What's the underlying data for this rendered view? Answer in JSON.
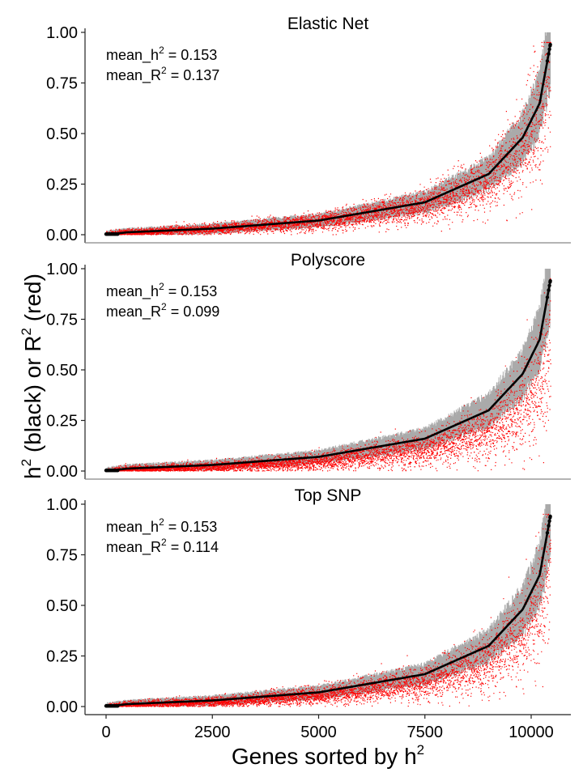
{
  "figure": {
    "ylabel": {
      "part1": "h",
      "sup1": "2",
      "part2": " (black) or  R",
      "sup2": "2",
      "part3": " (red)"
    },
    "xlabel": {
      "base": "Genes sorted by h",
      "sup": "2"
    }
  },
  "chart_data": [
    {
      "type": "scatter",
      "title": "Elastic Net",
      "annotation": {
        "h2_label": "mean_h",
        "h2_value": "0.153",
        "r2_label": "mean_R",
        "r2_value": "0.137"
      },
      "xlim": [
        0,
        10450
      ],
      "ylim": [
        0,
        1
      ],
      "xticks": [
        0,
        2500,
        5000,
        7500,
        10000
      ],
      "yticks": [
        0.0,
        0.25,
        0.5,
        0.75,
        1.0
      ],
      "ytick_labels": [
        "0.00",
        "0.25",
        "0.50",
        "0.75",
        "1.00"
      ],
      "series": [
        {
          "role": "h2",
          "color": "#000000"
        },
        {
          "role": "h2_interval",
          "color": "#aaaaaa"
        },
        {
          "role": "R2",
          "color": "#ff0000"
        }
      ],
      "n_genes": 10450,
      "h2_curve": [
        [
          0,
          0.0
        ],
        [
          500,
          0.012
        ],
        [
          2500,
          0.03
        ],
        [
          5000,
          0.07
        ],
        [
          7500,
          0.16
        ],
        [
          9000,
          0.3
        ],
        [
          9800,
          0.48
        ],
        [
          10200,
          0.65
        ],
        [
          10450,
          0.94
        ]
      ]
    },
    {
      "type": "scatter",
      "title": "Polyscore",
      "annotation": {
        "h2_label": "mean_h",
        "h2_value": "0.153",
        "r2_label": "mean_R",
        "r2_value": "0.099"
      },
      "xlim": [
        0,
        10450
      ],
      "ylim": [
        0,
        1
      ],
      "xticks": [
        0,
        2500,
        5000,
        7500,
        10000
      ],
      "yticks": [
        0.0,
        0.25,
        0.5,
        0.75,
        1.0
      ],
      "ytick_labels": [
        "0.00",
        "0.25",
        "0.50",
        "0.75",
        "1.00"
      ],
      "series": [
        {
          "role": "h2",
          "color": "#000000"
        },
        {
          "role": "h2_interval",
          "color": "#aaaaaa"
        },
        {
          "role": "R2",
          "color": "#ff0000"
        }
      ],
      "n_genes": 10450,
      "h2_curve": [
        [
          0,
          0.0
        ],
        [
          500,
          0.012
        ],
        [
          2500,
          0.03
        ],
        [
          5000,
          0.07
        ],
        [
          7500,
          0.16
        ],
        [
          9000,
          0.3
        ],
        [
          9800,
          0.48
        ],
        [
          10200,
          0.65
        ],
        [
          10450,
          0.94
        ]
      ]
    },
    {
      "type": "scatter",
      "title": "Top SNP",
      "annotation": {
        "h2_label": "mean_h",
        "h2_value": "0.153",
        "r2_label": "mean_R",
        "r2_value": "0.114"
      },
      "xlim": [
        0,
        10450
      ],
      "ylim": [
        0,
        1
      ],
      "xticks": [
        0,
        2500,
        5000,
        7500,
        10000
      ],
      "xtick_labels": [
        "0",
        "2500",
        "5000",
        "7500",
        "10000"
      ],
      "yticks": [
        0.0,
        0.25,
        0.5,
        0.75,
        1.0
      ],
      "ytick_labels": [
        "0.00",
        "0.25",
        "0.50",
        "0.75",
        "1.00"
      ],
      "series": [
        {
          "role": "h2",
          "color": "#000000"
        },
        {
          "role": "h2_interval",
          "color": "#aaaaaa"
        },
        {
          "role": "R2",
          "color": "#ff0000"
        }
      ],
      "n_genes": 10450,
      "h2_curve": [
        [
          0,
          0.0
        ],
        [
          500,
          0.012
        ],
        [
          2500,
          0.03
        ],
        [
          5000,
          0.07
        ],
        [
          7500,
          0.16
        ],
        [
          9000,
          0.3
        ],
        [
          9800,
          0.48
        ],
        [
          10200,
          0.65
        ],
        [
          10450,
          0.94
        ]
      ]
    }
  ]
}
